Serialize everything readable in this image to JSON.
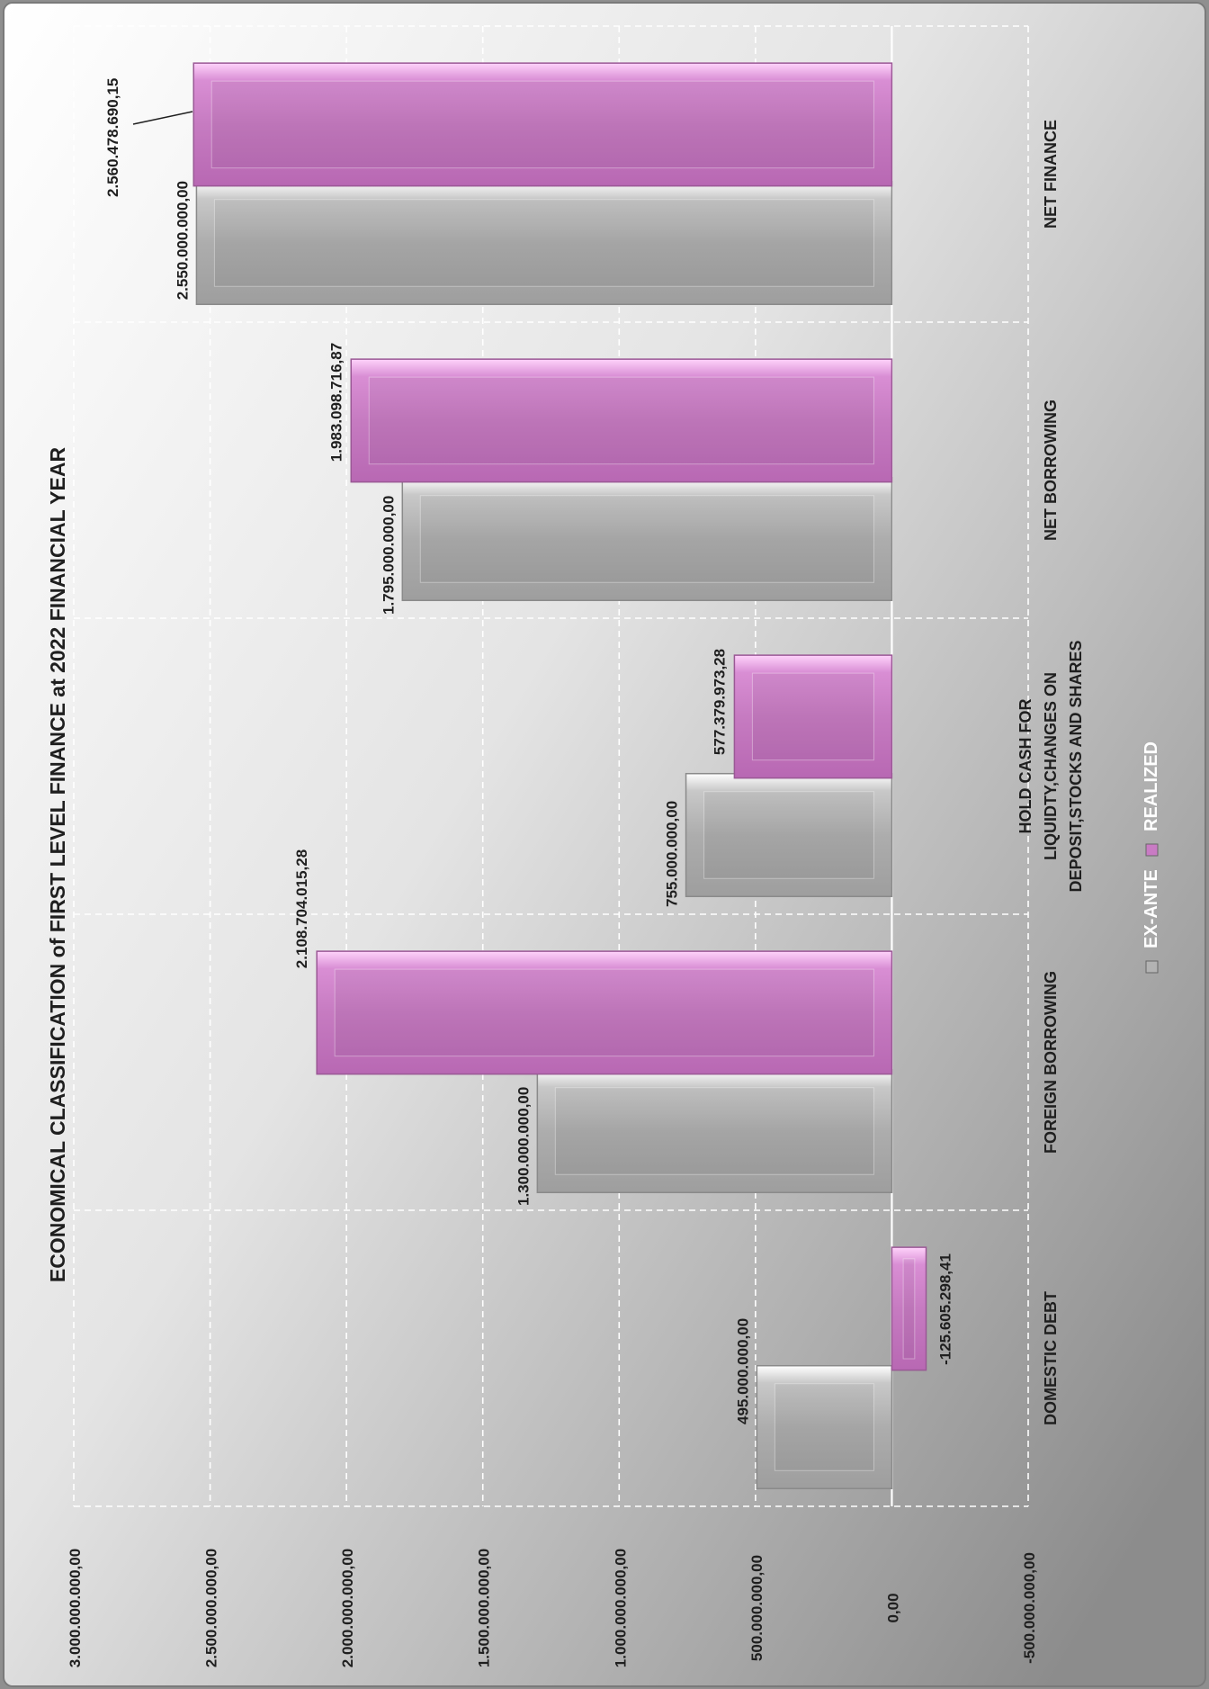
{
  "chart_data": {
    "type": "bar",
    "orientation": "vertical-rotated",
    "title": "ECONOMICAL CLASSIFICATION of  FIRST LEVEL FINANCE  at 2022 FINANCIAL YEAR",
    "xlabel": "",
    "ylabel": "",
    "categories": [
      "DOMESTIC DEBT",
      "FOREIGN BORROWING",
      "HOLD CASH FOR LIQUIDTY,CHANGES ON DEPOSIT,STOCKS AND SHARES",
      "NET BORROWING",
      "NET FINANCE"
    ],
    "category_lines": [
      [
        "DOMESTIC DEBT"
      ],
      [
        "FOREIGN BORROWING"
      ],
      [
        "HOLD CASH FOR",
        "LIQUIDTY,CHANGES ON",
        "DEPOSIT,STOCKS AND SHARES"
      ],
      [
        "NET BORROWING"
      ],
      [
        "NET FINANCE"
      ]
    ],
    "series": [
      {
        "name": "EX-ANTE",
        "color": "#b3b3b3",
        "values": [
          495000000,
          1300000000,
          755000000,
          1795000000,
          2550000000
        ],
        "labels": [
          "495.000.000,00",
          "1.300.000.000,00",
          "755.000.000,00",
          "1.795.000.000,00",
          "2.550.000.000,00"
        ]
      },
      {
        "name": "REALIZED",
        "color": "#c97bc4",
        "values": [
          -125605298.41,
          2108704015.28,
          577379973.28,
          1983098716.87,
          2560478690.15
        ],
        "labels": [
          "-125.605.298,41",
          "2.108.704.015,28",
          "577.379.973,28",
          "1.983.098.716,87",
          "2.560.478.690,15"
        ]
      }
    ],
    "ylim": [
      -500000000,
      3000000000
    ],
    "yticks": [
      -500000000,
      0,
      500000000,
      1000000000,
      1500000000,
      2000000000,
      2500000000,
      3000000000
    ],
    "ytick_labels": [
      "-500.000.000,00",
      "0,00",
      "500.000.000,00",
      "1.000.000.000,00",
      "1.500.000.000,00",
      "2.000.000.000,00",
      "2.500.000.000,00",
      "3.000.000.000,00"
    ],
    "grid": true,
    "legend_position": "bottom"
  }
}
